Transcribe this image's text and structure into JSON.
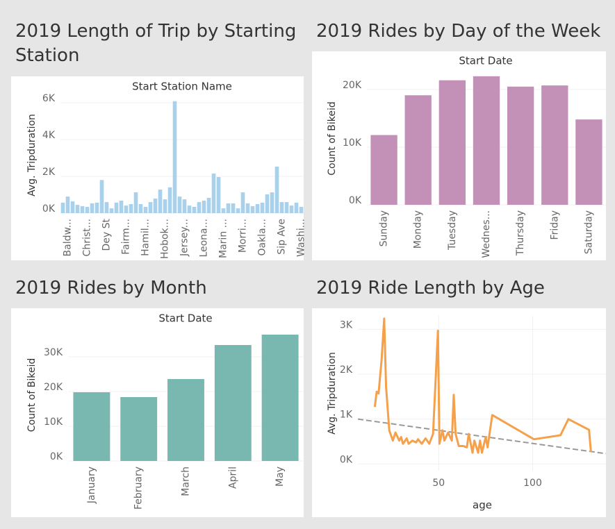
{
  "chart_data": [
    {
      "type": "bar",
      "title": "2019 Length of Trip by Starting Station",
      "x_label": "Start Station Name",
      "y_label": "Avg. Tripduration",
      "color": "#a9d1ec",
      "grid": true,
      "categories": [
        null,
        "Baldw...",
        null,
        null,
        null,
        "Christ...",
        null,
        null,
        null,
        "Dey St",
        null,
        null,
        null,
        "Fairm...",
        null,
        null,
        null,
        "Hamil...",
        null,
        null,
        null,
        "Hobok...",
        null,
        null,
        null,
        "Jersey...",
        null,
        null,
        null,
        "Leona...",
        null,
        null,
        null,
        "Marin ...",
        null,
        null,
        null,
        "Morri...",
        null,
        null,
        null,
        "Oakla...",
        null,
        null,
        null,
        "Sip Ave",
        null,
        null,
        null,
        "Washi..."
      ],
      "values": [
        570,
        900,
        640,
        450,
        380,
        340,
        530,
        570,
        1800,
        600,
        260,
        570,
        680,
        410,
        490,
        1130,
        490,
        340,
        600,
        790,
        1280,
        750,
        1400,
        6080,
        900,
        750,
        410,
        340,
        600,
        680,
        830,
        2150,
        1960,
        260,
        530,
        530,
        260,
        1130,
        530,
        380,
        490,
        570,
        1020,
        1130,
        2530,
        600,
        600,
        410,
        570,
        340
      ],
      "ylim": [
        0,
        6300
      ],
      "yticks": [
        {
          "value": 0,
          "label": "0K"
        },
        {
          "value": 2000,
          "label": "2K"
        },
        {
          "value": 4000,
          "label": "4K"
        },
        {
          "value": 6000,
          "label": "6K"
        }
      ]
    },
    {
      "type": "bar",
      "title": "2019 Rides by Day of the Week",
      "x_label": "Start Date",
      "y_label": "Count of Bikeid",
      "color": "#c390b8",
      "grid": true,
      "categories": [
        "Sunday",
        "Monday",
        "Tuesday",
        "Wednes...",
        "Thursday",
        "Friday",
        "Saturday"
      ],
      "values": [
        12100,
        19000,
        21600,
        22300,
        20500,
        20700,
        14800
      ],
      "ylim": [
        0,
        23000
      ],
      "yticks": [
        {
          "value": 0,
          "label": "0K"
        },
        {
          "value": 10000,
          "label": "10K"
        },
        {
          "value": 20000,
          "label": "20K"
        }
      ]
    },
    {
      "type": "bar",
      "title": "2019 Rides by Month",
      "x_label": "Start Date",
      "y_label": "Count of Bikeid",
      "color": "#79b8b1",
      "grid": true,
      "categories": [
        "January",
        "February",
        "March",
        "April",
        "May"
      ],
      "values": [
        19800,
        18400,
        23600,
        33400,
        36400
      ],
      "ylim": [
        0,
        38000
      ],
      "yticks": [
        {
          "value": 0,
          "label": "0K"
        },
        {
          "value": 10000,
          "label": "10K"
        },
        {
          "value": 20000,
          "label": "20K"
        },
        {
          "value": 30000,
          "label": "30K"
        }
      ]
    },
    {
      "type": "line",
      "title": "2019 Ride Length by Age",
      "x_label": "age",
      "y_label": "Avg. Tripduration",
      "color": "#f5a04a",
      "grid": true,
      "x": [
        16,
        17,
        18,
        19.6,
        21,
        22,
        23.7,
        25.6,
        27,
        29,
        30,
        31,
        33,
        34,
        36,
        38,
        39,
        41,
        43,
        45,
        47,
        49.6,
        50.4,
        52,
        53,
        55,
        57,
        58,
        59,
        60.7,
        63,
        65,
        66,
        68,
        69,
        71,
        72,
        73,
        75,
        76,
        78.5,
        100.7,
        114.8,
        119,
        130,
        131
      ],
      "values": [
        1270,
        1610,
        1570,
        2310,
        3240,
        1720,
        750,
        520,
        700,
        520,
        600,
        450,
        570,
        450,
        520,
        480,
        550,
        450,
        570,
        450,
        670,
        2970,
        450,
        750,
        520,
        700,
        520,
        1540,
        670,
        400,
        400,
        370,
        670,
        250,
        520,
        250,
        520,
        250,
        600,
        370,
        1090,
        550,
        640,
        1000,
        760,
        270
      ],
      "trend_line": {
        "color": "#999999",
        "x": [
          7,
          139
        ],
        "values": [
          1000,
          230
        ]
      },
      "xlim": [
        7,
        139
      ],
      "xticks": [
        50,
        100
      ],
      "ylim": [
        -150,
        3300
      ],
      "yticks": [
        {
          "value": 0,
          "label": "0K"
        },
        {
          "value": 1000,
          "label": "1K"
        },
        {
          "value": 2000,
          "label": "2K"
        },
        {
          "value": 3000,
          "label": "3K"
        }
      ]
    }
  ]
}
